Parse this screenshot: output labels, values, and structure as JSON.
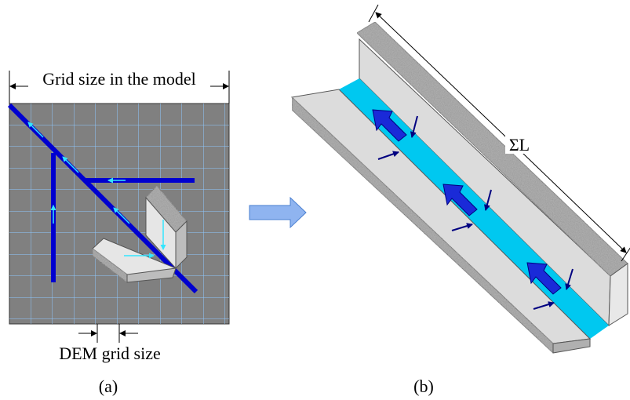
{
  "labels": {
    "grid_size": "Grid size in the model",
    "dem_grid_size": "DEM grid size",
    "panel_a": "(a)",
    "panel_b": "(b)",
    "sum_length": "ΣL"
  }
}
